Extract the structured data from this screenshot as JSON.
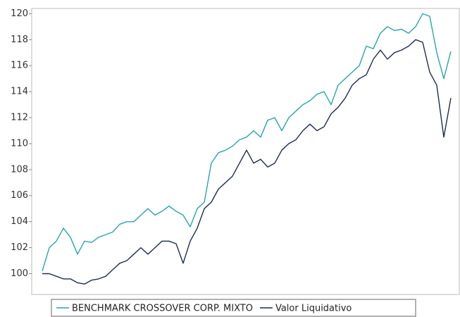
{
  "chart_data": {
    "type": "line",
    "series": [
      {
        "name": "BENCHMARK CROSSOVER CORP. MIXTO",
        "color": "#2aa6a8",
        "values": [
          100.2,
          102,
          102.5,
          103.5,
          102.8,
          101.5,
          102.5,
          102.4,
          102.8,
          103,
          103.2,
          103.8,
          104,
          104,
          104.5,
          105,
          104.5,
          104.8,
          105.2,
          104.8,
          104.5,
          103.6,
          105,
          105.5,
          108.5,
          109.3,
          109.5,
          109.8,
          110.3,
          110.5,
          111,
          110.5,
          111.8,
          112,
          111,
          112,
          112.5,
          113,
          113.3,
          113.8,
          114,
          113,
          114.5,
          115,
          115.5,
          116,
          117.5,
          117.3,
          118.5,
          119,
          118.7,
          118.8,
          118.5,
          119,
          120,
          119.8,
          117,
          115,
          117.1
        ]
      },
      {
        "name": "Valor Liquidativo",
        "color": "#1e2d50",
        "values": [
          100,
          100,
          99.8,
          99.6,
          99.6,
          99.3,
          99.2,
          99.5,
          99.6,
          99.8,
          100.3,
          100.8,
          101,
          101.5,
          102,
          101.5,
          102,
          102.5,
          102.5,
          102.3,
          100.8,
          102.5,
          103.5,
          105,
          105.5,
          106.5,
          107,
          107.5,
          108.5,
          109.5,
          108.5,
          108.8,
          108.2,
          108.5,
          109.5,
          110,
          110.3,
          111,
          111.5,
          111,
          111.3,
          112.3,
          112.8,
          113.5,
          114.5,
          115,
          115.3,
          116.5,
          117.2,
          116.5,
          117,
          117.2,
          117.5,
          118,
          117.8,
          115.5,
          114.5,
          110.5,
          113.5
        ]
      }
    ],
    "ylim": [
      98.4,
      120.4
    ],
    "yticks": [
      100,
      102,
      104,
      106,
      108,
      110,
      112,
      114,
      116,
      118,
      120
    ]
  }
}
